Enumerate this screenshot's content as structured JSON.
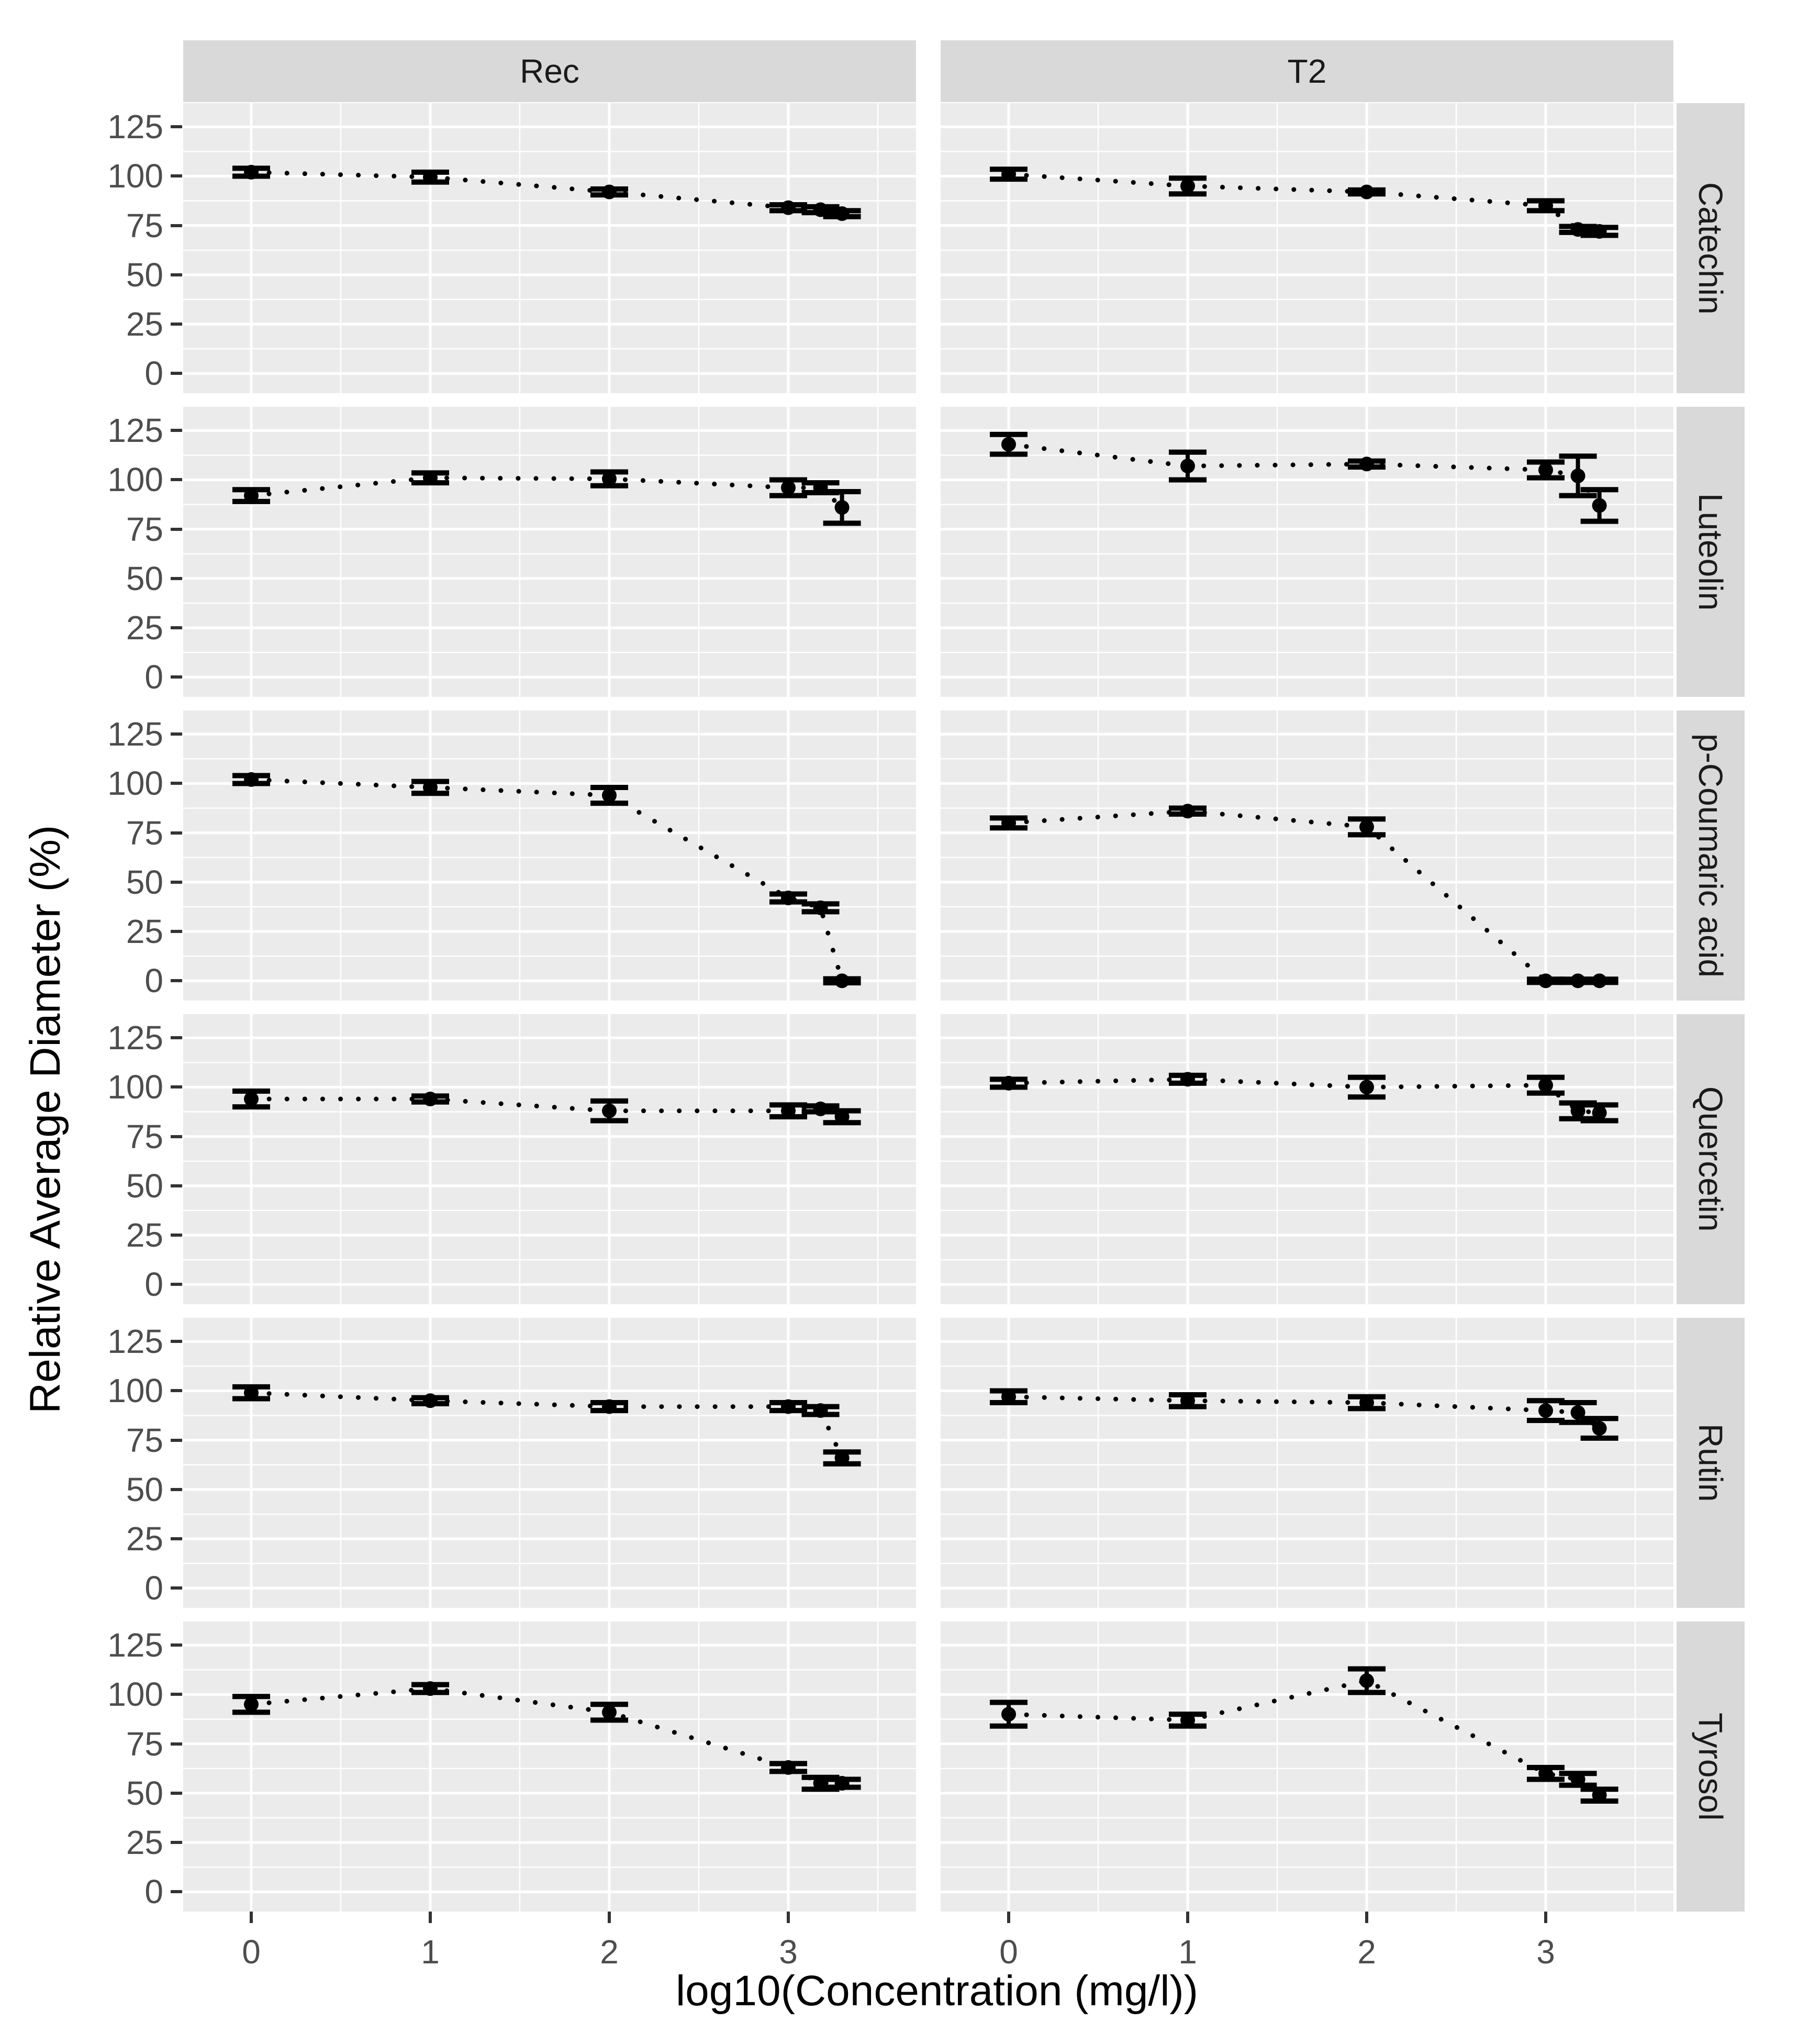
{
  "figure": {
    "x_axis_title": "log10(Concentration (mg/l))",
    "y_axis_title": "Relative Average Diameter (%)",
    "col_facets": [
      "Rec",
      "T2"
    ],
    "row_facets": [
      "Catechin",
      "Luteolin",
      "p-Coumaric acid",
      "Quercetin",
      "Rutin",
      "Tyrosol"
    ],
    "y_ticks": [
      125,
      100,
      75,
      50,
      25,
      0
    ],
    "x_ticks": [
      0,
      1,
      2,
      3
    ],
    "colors": {
      "panel_bg": "#ebebeb",
      "grid_major": "#ffffff",
      "grid_minor": "#f6f6f6",
      "strip_bg": "#d9d9d9",
      "point": "#000000",
      "tick_text": "#4d4d4d",
      "tick_mark": "#333333",
      "title_text": "#000000"
    }
  },
  "chart_data": {
    "type": "scatter",
    "title": "",
    "xlabel": "log10(Concentration (mg/l))",
    "ylabel": "Relative Average Diameter (%)",
    "x": [
      0,
      1,
      2,
      3,
      3.18,
      3.3
    ],
    "xlim": [
      -0.38,
      3.72
    ],
    "ylim": [
      0,
      125
    ],
    "grid": true,
    "legend": false,
    "line_style": "dotted",
    "marker": "filled-circle-with-error-bars",
    "facet_columns": [
      "Rec",
      "T2"
    ],
    "facet_rows": [
      "Catechin",
      "Luteolin",
      "p-Coumaric acid",
      "Quercetin",
      "Rutin",
      "Tyrosol"
    ],
    "facets": [
      {
        "row": "Catechin",
        "col": "Rec",
        "y": [
          102,
          99.5,
          92,
          84,
          83,
          81
        ],
        "err": [
          2,
          2.5,
          1.5,
          1.5,
          1.5,
          1.5
        ]
      },
      {
        "row": "Catechin",
        "col": "T2",
        "y": [
          101,
          95,
          92,
          85,
          73,
          72
        ],
        "err": [
          2.5,
          4,
          1,
          2.5,
          1.5,
          2
        ]
      },
      {
        "row": "Luteolin",
        "col": "Rec",
        "y": [
          92,
          101,
          100.5,
          96,
          96,
          86
        ],
        "err": [
          3,
          2.5,
          3.5,
          4,
          2.5,
          8
        ]
      },
      {
        "row": "Luteolin",
        "col": "T2",
        "y": [
          118,
          107,
          108,
          105,
          102,
          87
        ],
        "err": [
          5,
          7,
          1.5,
          4,
          10,
          8
        ]
      },
      {
        "row": "p-Coumaric acid",
        "col": "Rec",
        "y": [
          102,
          98,
          94,
          42,
          37,
          0
        ],
        "err": [
          2,
          3,
          4,
          2,
          2,
          1
        ]
      },
      {
        "row": "p-Coumaric acid",
        "col": "T2",
        "y": [
          80,
          86,
          78,
          0,
          0,
          0
        ],
        "err": [
          2.5,
          1.5,
          4,
          0.8,
          0.8,
          0.8
        ]
      },
      {
        "row": "Quercetin",
        "col": "Rec",
        "y": [
          94,
          94,
          88,
          88,
          89,
          85
        ],
        "err": [
          4,
          1.5,
          5,
          3,
          1.5,
          3
        ]
      },
      {
        "row": "Quercetin",
        "col": "T2",
        "y": [
          102,
          104,
          100,
          101,
          88,
          87
        ],
        "err": [
          2,
          2,
          5,
          4,
          4,
          4
        ]
      },
      {
        "row": "Rutin",
        "col": "Rec",
        "y": [
          99,
          95,
          92,
          92,
          90,
          66
        ],
        "err": [
          3,
          1.5,
          2,
          2,
          2,
          3
        ]
      },
      {
        "row": "Rutin",
        "col": "T2",
        "y": [
          97,
          95,
          94,
          90,
          89,
          81
        ],
        "err": [
          3,
          3,
          3,
          5,
          5,
          5
        ]
      },
      {
        "row": "Tyrosol",
        "col": "Rec",
        "y": [
          95,
          103,
          91,
          63,
          55,
          55
        ],
        "err": [
          4,
          2,
          4,
          2,
          3,
          2
        ]
      },
      {
        "row": "Tyrosol",
        "col": "T2",
        "y": [
          90,
          87,
          107,
          60,
          57,
          49
        ],
        "err": [
          6,
          3,
          6,
          3,
          3,
          3
        ]
      }
    ]
  }
}
